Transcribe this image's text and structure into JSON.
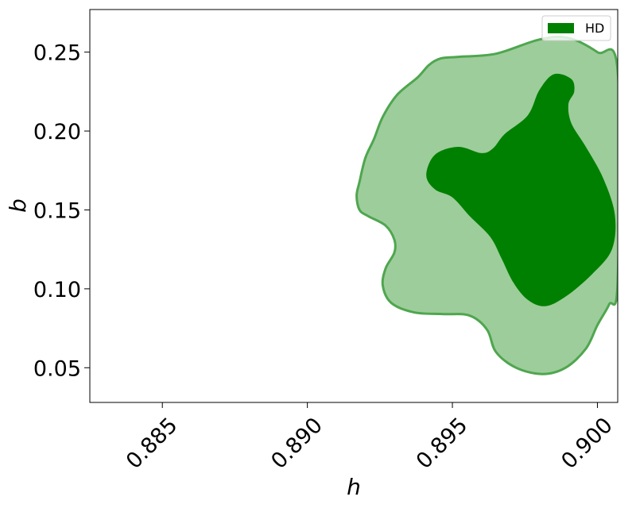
{
  "chart_data": {
    "type": "area",
    "xlabel": "h",
    "ylabel": "b",
    "xlim": [
      0.8825,
      0.9007
    ],
    "ylim": [
      0.028,
      0.277
    ],
    "x_ticks": [
      "0.885",
      "0.890",
      "0.895",
      "0.900"
    ],
    "y_ticks": [
      "0.05",
      "0.10",
      "0.15",
      "0.20",
      "0.25"
    ],
    "grid": false,
    "legend": {
      "position": "top-right",
      "entries": [
        "HD"
      ]
    },
    "colors": {
      "outer_fill": "#9dcd9b",
      "outer_edge": "#4fa64f",
      "inner_fill": "#008000",
      "legend_patch": "#008000"
    },
    "series": [
      {
        "name": "HD",
        "region": "outer",
        "points": [
          [
            0.9007,
            0.238
          ],
          [
            0.9,
            0.25
          ],
          [
            0.899,
            0.259
          ],
          [
            0.898,
            0.258
          ],
          [
            0.8965,
            0.249
          ],
          [
            0.8952,
            0.247
          ],
          [
            0.8946,
            0.246
          ],
          [
            0.8942,
            0.242
          ],
          [
            0.8938,
            0.234
          ],
          [
            0.8931,
            0.223
          ],
          [
            0.8926,
            0.209
          ],
          [
            0.8923,
            0.195
          ],
          [
            0.892,
            0.183
          ],
          [
            0.8918,
            0.168
          ],
          [
            0.8917,
            0.159
          ],
          [
            0.8918,
            0.15
          ],
          [
            0.8921,
            0.146
          ],
          [
            0.8927,
            0.14
          ],
          [
            0.893,
            0.131
          ],
          [
            0.893,
            0.123
          ],
          [
            0.8927,
            0.113
          ],
          [
            0.8926,
            0.102
          ],
          [
            0.8929,
            0.091
          ],
          [
            0.8937,
            0.085
          ],
          [
            0.8947,
            0.084
          ],
          [
            0.8956,
            0.083
          ],
          [
            0.8962,
            0.074
          ],
          [
            0.8965,
            0.06
          ],
          [
            0.8972,
            0.05
          ],
          [
            0.8981,
            0.046
          ],
          [
            0.8989,
            0.05
          ],
          [
            0.8996,
            0.062
          ],
          [
            0.9,
            0.077
          ],
          [
            0.9004,
            0.09
          ],
          [
            0.9007,
            0.105
          ]
        ]
      },
      {
        "name": "HD",
        "region": "inner",
        "points": [
          [
            0.8985,
            0.236
          ],
          [
            0.8991,
            0.233
          ],
          [
            0.8992,
            0.225
          ],
          [
            0.899,
            0.217
          ],
          [
            0.8991,
            0.205
          ],
          [
            0.8996,
            0.19
          ],
          [
            0.9002,
            0.17
          ],
          [
            0.9006,
            0.147
          ],
          [
            0.9005,
            0.125
          ],
          [
            0.8998,
            0.109
          ],
          [
            0.8989,
            0.095
          ],
          [
            0.8982,
            0.089
          ],
          [
            0.8976,
            0.093
          ],
          [
            0.8971,
            0.104
          ],
          [
            0.8967,
            0.119
          ],
          [
            0.8963,
            0.133
          ],
          [
            0.8956,
            0.146
          ],
          [
            0.895,
            0.158
          ],
          [
            0.8944,
            0.163
          ],
          [
            0.8941,
            0.172
          ],
          [
            0.8944,
            0.185
          ],
          [
            0.8952,
            0.19
          ],
          [
            0.896,
            0.186
          ],
          [
            0.8964,
            0.189
          ],
          [
            0.8968,
            0.198
          ],
          [
            0.8976,
            0.21
          ],
          [
            0.898,
            0.226
          ]
        ]
      }
    ]
  }
}
